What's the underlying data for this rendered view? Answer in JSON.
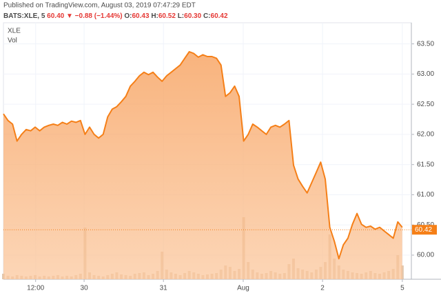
{
  "header": {
    "published": "Published on TradingView.com, August 03, 2019 07:47:29 EDT",
    "symbol": "BATS:XLE, 5",
    "last": "60.40",
    "arrow": "▼",
    "change": "−0.88 (−1.44%)",
    "open_label": "O:",
    "open": "60.43",
    "high_label": "H:",
    "high": "60.52",
    "low_label": "L:",
    "low": "60.30",
    "close_label": "C:",
    "close": "60.42"
  },
  "chart_data": {
    "type": "area",
    "title": "XLE",
    "subtitle": "Vol",
    "series": [
      {
        "name": "XLE",
        "color": "#f57f17",
        "values": [
          62.34,
          62.23,
          62.17,
          61.89,
          62.0,
          62.08,
          62.06,
          62.12,
          62.06,
          62.12,
          62.15,
          62.17,
          62.15,
          62.2,
          62.17,
          62.22,
          62.2,
          62.23,
          62.0,
          62.12,
          62.0,
          61.94,
          62.0,
          62.29,
          62.42,
          62.46,
          62.54,
          62.63,
          62.8,
          62.88,
          62.97,
          63.03,
          62.99,
          63.03,
          62.95,
          62.88,
          62.97,
          63.03,
          63.09,
          63.15,
          63.26,
          63.37,
          63.34,
          63.28,
          63.32,
          63.29,
          63.29,
          63.26,
          63.15,
          62.63,
          62.69,
          62.8,
          62.63,
          61.89,
          62.0,
          62.17,
          62.12,
          62.06,
          62.0,
          62.12,
          62.15,
          62.12,
          62.17,
          62.23,
          61.49,
          61.26,
          61.14,
          61.03,
          61.2,
          61.37,
          61.54,
          61.26,
          60.46,
          60.23,
          59.94,
          60.17,
          60.28,
          60.51,
          60.69,
          60.51,
          60.46,
          60.48,
          60.43,
          60.46,
          60.4,
          60.34,
          60.28,
          60.55,
          60.46
        ]
      }
    ],
    "volume": [
      8,
      5,
      4,
      6,
      5,
      4,
      5,
      6,
      4,
      5,
      4,
      5,
      6,
      4,
      5,
      4,
      6,
      8,
      75,
      10,
      6,
      5,
      4,
      6,
      8,
      10,
      7,
      6,
      5,
      8,
      9,
      10,
      6,
      8,
      12,
      40,
      14,
      10,
      8,
      6,
      9,
      12,
      10,
      8,
      6,
      7,
      8,
      9,
      14,
      20,
      18,
      12,
      15,
      90,
      25,
      14,
      10,
      8,
      9,
      12,
      10,
      8,
      9,
      22,
      30,
      16,
      14,
      12,
      10,
      14,
      18,
      25,
      65,
      30,
      20,
      14,
      12,
      10,
      9,
      8,
      10,
      12,
      9,
      8,
      10,
      12,
      15,
      35,
      20
    ],
    "xlim": [
      0,
      90
    ],
    "xticks": [
      {
        "value": 7.1,
        "label": "12:00"
      },
      {
        "value": 17.8,
        "label": "30"
      },
      {
        "value": 35.3,
        "label": "31"
      },
      {
        "value": 52.9,
        "label": "Aug"
      },
      {
        "value": 70.4,
        "label": "2"
      },
      {
        "value": 88.0,
        "label": "5"
      }
    ],
    "ylim": [
      59.6,
      63.85
    ],
    "yticks": [
      {
        "value": 60,
        "label": "60.00"
      },
      {
        "value": 60.5,
        "label": "60.50"
      },
      {
        "value": 61,
        "label": "61.00"
      },
      {
        "value": 61.5,
        "label": "61.50"
      },
      {
        "value": 62,
        "label": "62.00"
      },
      {
        "value": 62.5,
        "label": "62.50"
      },
      {
        "value": 63,
        "label": "63.00"
      },
      {
        "value": 63.5,
        "label": "63.50"
      }
    ],
    "last_price": {
      "value": 60.42,
      "label": "60.42"
    },
    "grid": true
  }
}
